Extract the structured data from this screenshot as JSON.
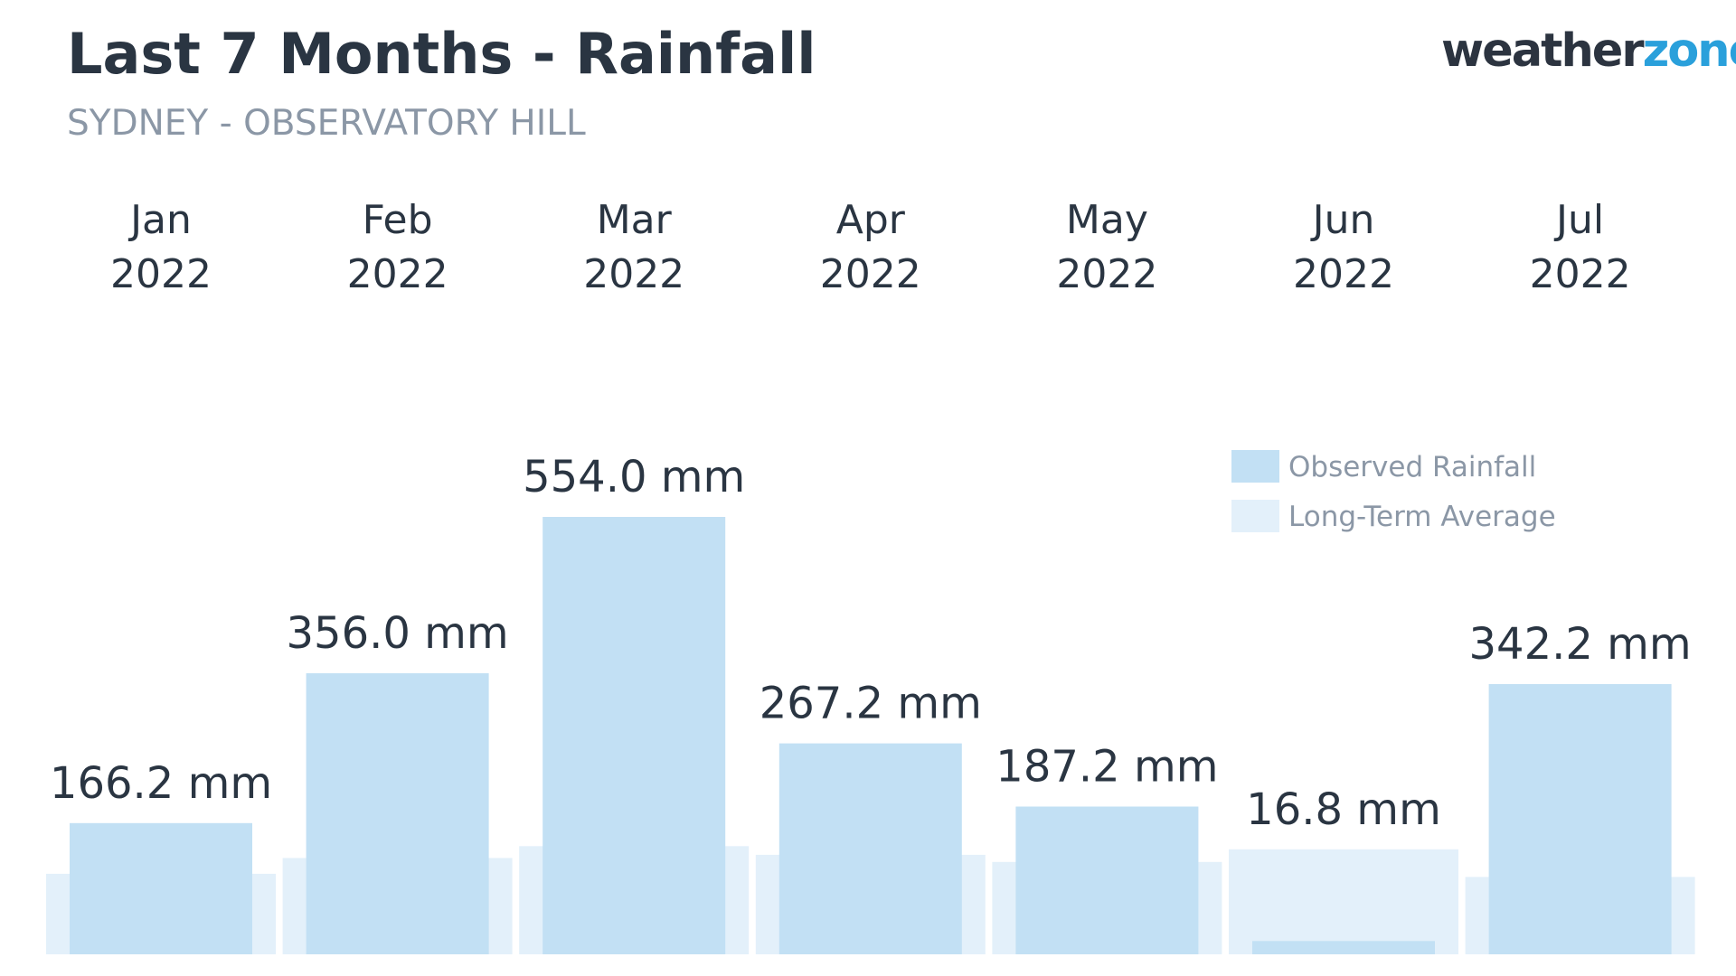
{
  "header": {
    "title": "Last 7 Months - Rainfall",
    "subtitle": "SYDNEY - OBSERVATORY HILL",
    "logo_part1": "weather",
    "logo_part2": "zone",
    "logo_mark": "°"
  },
  "colors": {
    "title": "#2a3542",
    "subtitle": "#8b97a6",
    "observed": "#c2e0f4",
    "average": "#e3f0fa",
    "label": "#2a3542",
    "legend_text": "#8b97a6",
    "brand_dark": "#2c3440",
    "brand_blue": "#2aa0db"
  },
  "chart_data": {
    "type": "bar",
    "title": "Last 7 Months - Rainfall",
    "subtitle": "SYDNEY - OBSERVATORY HILL",
    "categories": [
      {
        "month": "Jan",
        "year": "2022"
      },
      {
        "month": "Feb",
        "year": "2022"
      },
      {
        "month": "Mar",
        "year": "2022"
      },
      {
        "month": "Apr",
        "year": "2022"
      },
      {
        "month": "May",
        "year": "2022"
      },
      {
        "month": "Jun",
        "year": "2022"
      },
      {
        "month": "Jul",
        "year": "2022"
      }
    ],
    "series": [
      {
        "name": "Observed Rainfall",
        "values": [
          166.2,
          356.0,
          554.0,
          267.2,
          187.2,
          16.8,
          342.2
        ],
        "labels": [
          "166.2 mm",
          "356.0 mm",
          "554.0 mm",
          "267.2 mm",
          "187.2 mm",
          "16.8 mm",
          "342.2 mm"
        ]
      },
      {
        "name": "Long-Term Average",
        "values": [
          102,
          122,
          137,
          126,
          117,
          133,
          98
        ]
      }
    ],
    "unit": "mm",
    "ylim": [
      0,
      554
    ],
    "grid": false,
    "legend": "right"
  }
}
